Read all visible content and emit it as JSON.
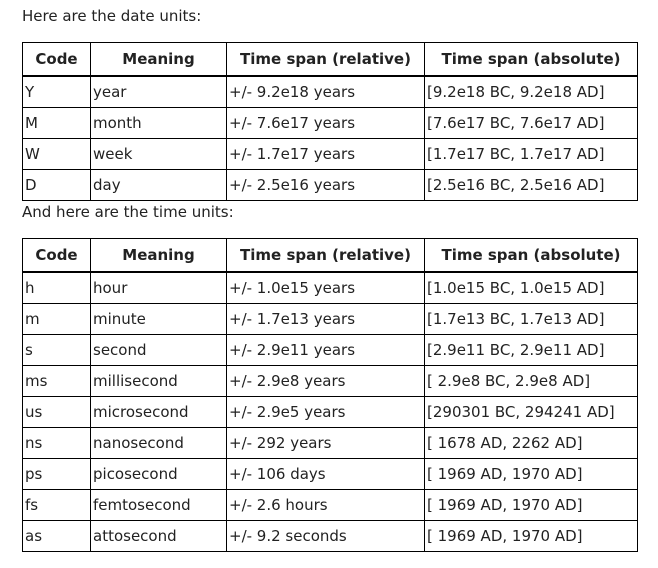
{
  "date_section": {
    "intro": "Here are the date units:",
    "headers": [
      "Code",
      "Meaning",
      "Time span (relative)",
      "Time span (absolute)"
    ],
    "rows": [
      [
        "Y",
        "year",
        "+/- 9.2e18 years",
        "[9.2e18 BC, 9.2e18 AD]"
      ],
      [
        "M",
        "month",
        "+/- 7.6e17 years",
        "[7.6e17 BC, 7.6e17 AD]"
      ],
      [
        "W",
        "week",
        "+/- 1.7e17 years",
        "[1.7e17 BC, 1.7e17 AD]"
      ],
      [
        "D",
        "day",
        "+/- 2.5e16 years",
        "[2.5e16 BC, 2.5e16 AD]"
      ]
    ]
  },
  "time_section": {
    "intro": "And here are the time units:",
    "headers": [
      "Code",
      "Meaning",
      "Time span (relative)",
      "Time span (absolute)"
    ],
    "rows": [
      [
        "h",
        "hour",
        "+/- 1.0e15 years",
        "[1.0e15 BC, 1.0e15 AD]"
      ],
      [
        "m",
        "minute",
        "+/- 1.7e13 years",
        "[1.7e13 BC, 1.7e13 AD]"
      ],
      [
        "s",
        "second",
        "+/- 2.9e11 years",
        "[2.9e11 BC, 2.9e11 AD]"
      ],
      [
        "ms",
        "millisecond",
        "+/- 2.9e8 years",
        "[ 2.9e8 BC, 2.9e8 AD]"
      ],
      [
        "us",
        "microsecond",
        "+/- 2.9e5 years",
        "[290301 BC, 294241 AD]"
      ],
      [
        "ns",
        "nanosecond",
        "+/- 292 years",
        "[ 1678 AD, 2262 AD]"
      ],
      [
        "ps",
        "picosecond",
        "+/- 106 days",
        "[ 1969 AD, 1970 AD]"
      ],
      [
        "fs",
        "femtosecond",
        "+/- 2.6 hours",
        "[ 1969 AD, 1970 AD]"
      ],
      [
        "as",
        "attosecond",
        "+/- 9.2 seconds",
        "[ 1969 AD, 1970 AD]"
      ]
    ]
  }
}
